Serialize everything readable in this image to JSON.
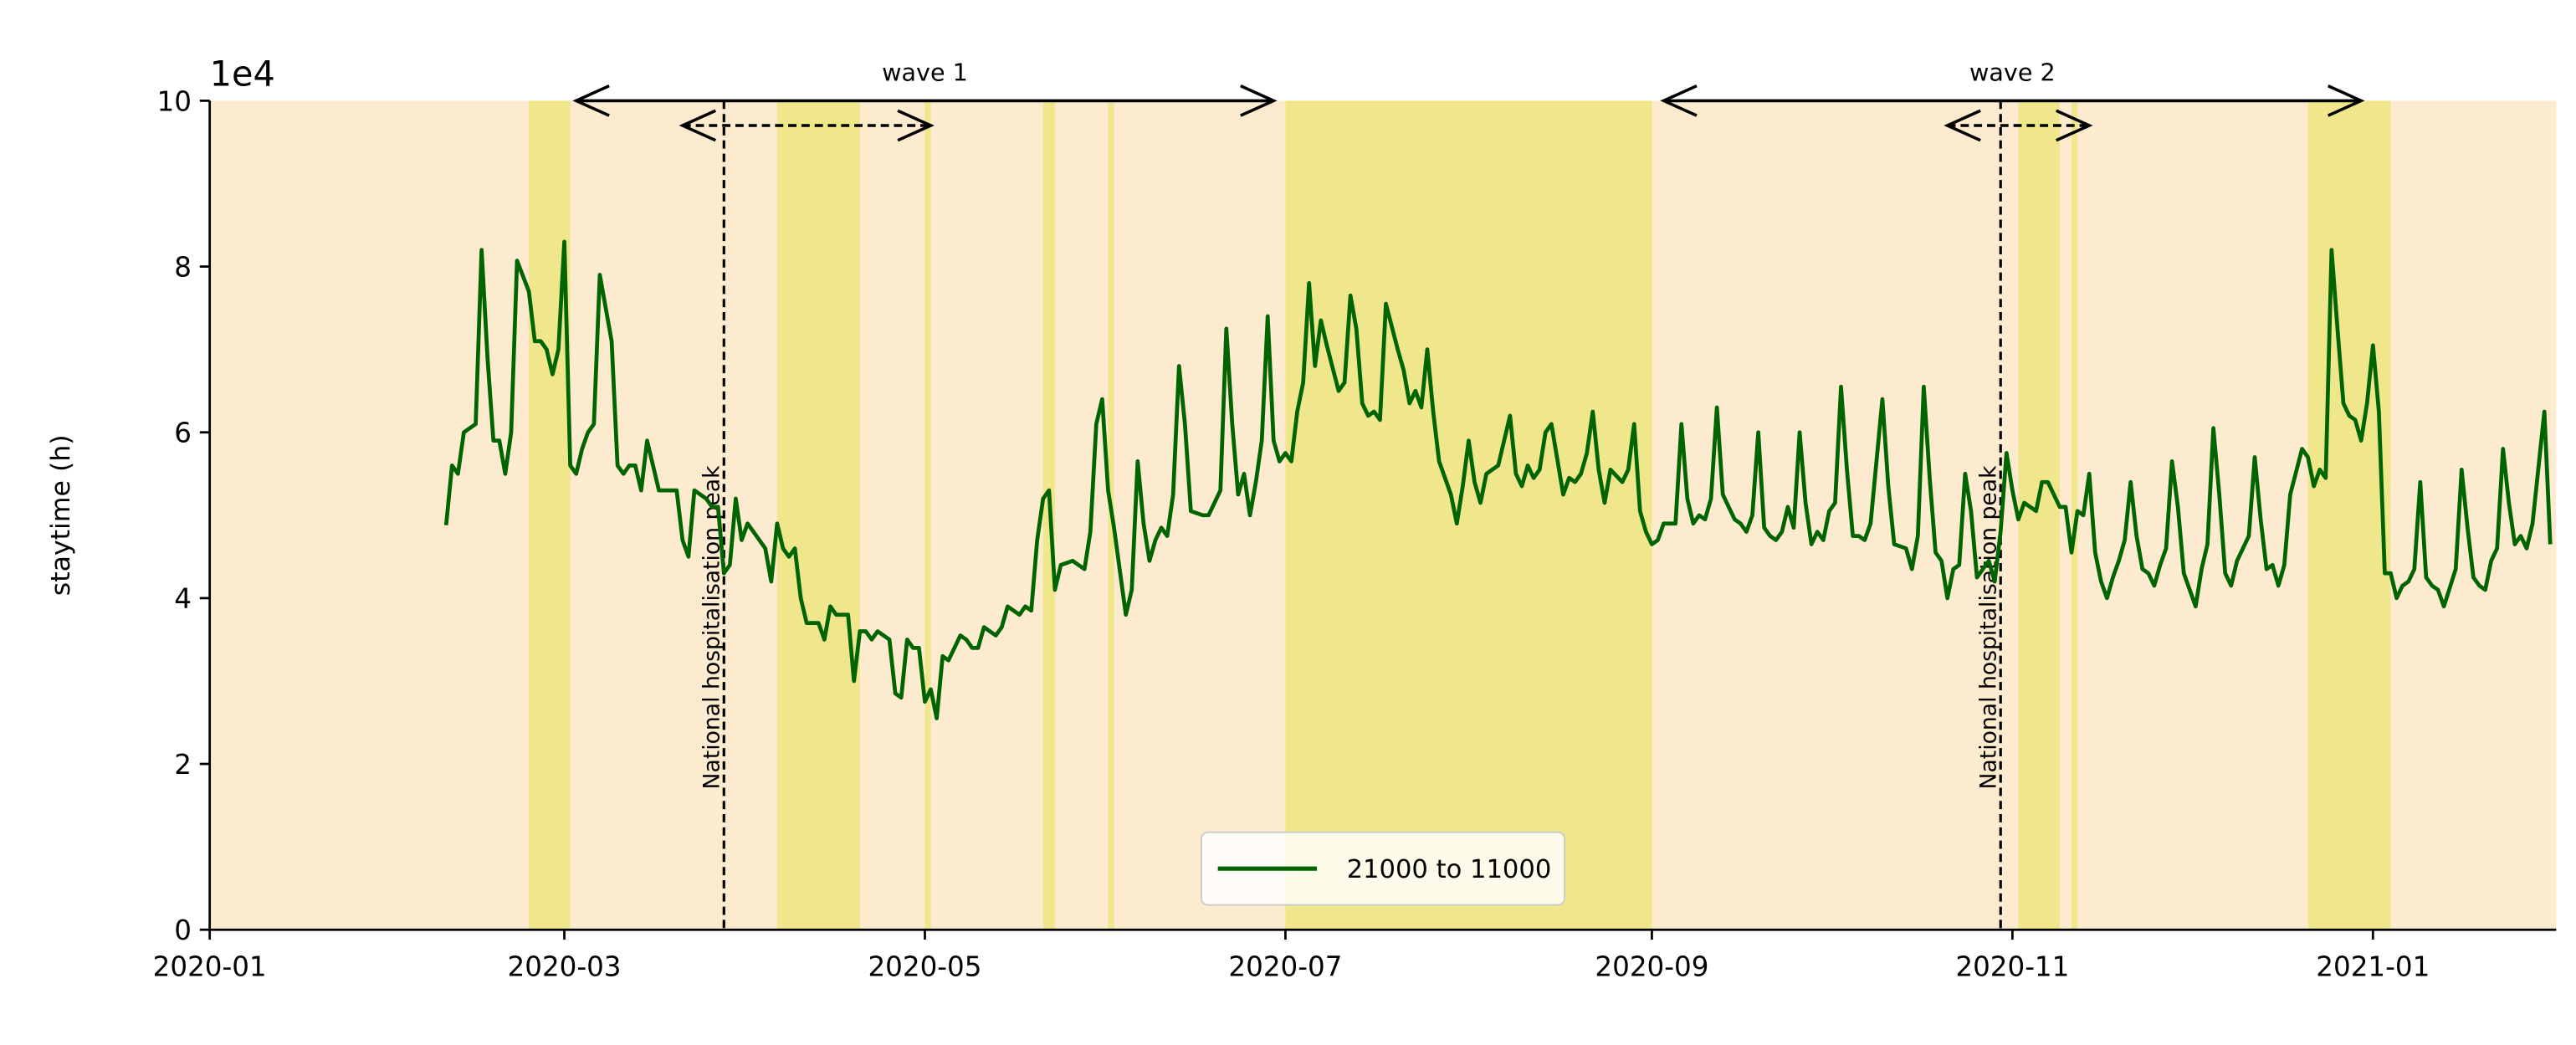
{
  "chart_data": {
    "type": "line",
    "y_offset_label": "1e4",
    "ylabel": "staytime (h)",
    "x": [
      "2020-02-10",
      "2020-02-11",
      "2020-02-12",
      "2020-02-13",
      "2020-02-15",
      "2020-02-16",
      "2020-02-17",
      "2020-02-18",
      "2020-02-19",
      "2020-02-20",
      "2020-02-21",
      "2020-02-22",
      "2020-02-24",
      "2020-02-25",
      "2020-02-26",
      "2020-02-27",
      "2020-02-28",
      "2020-02-29",
      "2020-03-01",
      "2020-03-02",
      "2020-03-03",
      "2020-03-04",
      "2020-03-05",
      "2020-03-06",
      "2020-03-07",
      "2020-03-09",
      "2020-03-10",
      "2020-03-11",
      "2020-03-12",
      "2020-03-13",
      "2020-03-14",
      "2020-03-15",
      "2020-03-16",
      "2020-03-17",
      "2020-03-18",
      "2020-03-19",
      "2020-03-20",
      "2020-03-21",
      "2020-03-22",
      "2020-03-23",
      "2020-03-25",
      "2020-03-26",
      "2020-03-27",
      "2020-03-28",
      "2020-03-29",
      "2020-03-30",
      "2020-03-31",
      "2020-04-01",
      "2020-04-02",
      "2020-04-04",
      "2020-04-05",
      "2020-04-06",
      "2020-04-07",
      "2020-04-08",
      "2020-04-09",
      "2020-04-10",
      "2020-04-11",
      "2020-04-13",
      "2020-04-14",
      "2020-04-15",
      "2020-04-16",
      "2020-04-17",
      "2020-04-18",
      "2020-04-19",
      "2020-04-20",
      "2020-04-21",
      "2020-04-22",
      "2020-04-23",
      "2020-04-25",
      "2020-04-26",
      "2020-04-27",
      "2020-04-28",
      "2020-04-29",
      "2020-04-30",
      "2020-05-01",
      "2020-05-02",
      "2020-05-03",
      "2020-05-04",
      "2020-05-05",
      "2020-05-07",
      "2020-05-08",
      "2020-05-09",
      "2020-05-10",
      "2020-05-11",
      "2020-05-12",
      "2020-05-13",
      "2020-05-14",
      "2020-05-15",
      "2020-05-17",
      "2020-05-18",
      "2020-05-19",
      "2020-05-20",
      "2020-05-21",
      "2020-05-22",
      "2020-05-23",
      "2020-05-24",
      "2020-05-26",
      "2020-05-27",
      "2020-05-28",
      "2020-05-29",
      "2020-05-30",
      "2020-05-31",
      "2020-06-01",
      "2020-06-02",
      "2020-06-04",
      "2020-06-05",
      "2020-06-06",
      "2020-06-07",
      "2020-06-08",
      "2020-06-09",
      "2020-06-10",
      "2020-06-11",
      "2020-06-12",
      "2020-06-13",
      "2020-06-14",
      "2020-06-15",
      "2020-06-17",
      "2020-06-18",
      "2020-06-19",
      "2020-06-20",
      "2020-06-21",
      "2020-06-22",
      "2020-06-23",
      "2020-06-24",
      "2020-06-25",
      "2020-06-26",
      "2020-06-27",
      "2020-06-28",
      "2020-06-29",
      "2020-06-30",
      "2020-07-01",
      "2020-07-02",
      "2020-07-03",
      "2020-07-04",
      "2020-07-05",
      "2020-07-06",
      "2020-07-07",
      "2020-07-08",
      "2020-07-10",
      "2020-07-11",
      "2020-07-12",
      "2020-07-13",
      "2020-07-14",
      "2020-07-15",
      "2020-07-16",
      "2020-07-17",
      "2020-07-18",
      "2020-07-20",
      "2020-07-21",
      "2020-07-22",
      "2020-07-23",
      "2020-07-24",
      "2020-07-25",
      "2020-07-26",
      "2020-07-27",
      "2020-07-29",
      "2020-07-30",
      "2020-07-31",
      "2020-08-01",
      "2020-08-02",
      "2020-08-03",
      "2020-08-04",
      "2020-08-05",
      "2020-08-06",
      "2020-08-08",
      "2020-08-09",
      "2020-08-10",
      "2020-08-11",
      "2020-08-12",
      "2020-08-13",
      "2020-08-14",
      "2020-08-15",
      "2020-08-17",
      "2020-08-18",
      "2020-08-19",
      "2020-08-20",
      "2020-08-21",
      "2020-08-22",
      "2020-08-23",
      "2020-08-24",
      "2020-08-25",
      "2020-08-27",
      "2020-08-28",
      "2020-08-29",
      "2020-08-30",
      "2020-08-31",
      "2020-09-01",
      "2020-09-02",
      "2020-09-03",
      "2020-09-05",
      "2020-09-06",
      "2020-09-07",
      "2020-09-08",
      "2020-09-09",
      "2020-09-10",
      "2020-09-11",
      "2020-09-12",
      "2020-09-13",
      "2020-09-15",
      "2020-09-16",
      "2020-09-17",
      "2020-09-18",
      "2020-09-19",
      "2020-09-20",
      "2020-09-21",
      "2020-09-22",
      "2020-09-23",
      "2020-09-24",
      "2020-09-25",
      "2020-09-26",
      "2020-09-27",
      "2020-09-28",
      "2020-09-29",
      "2020-09-30",
      "2020-10-01",
      "2020-10-02",
      "2020-10-03",
      "2020-10-04",
      "2020-10-05",
      "2020-10-06",
      "2020-10-07",
      "2020-10-08",
      "2020-10-10",
      "2020-10-11",
      "2020-10-12",
      "2020-10-14",
      "2020-10-15",
      "2020-10-16",
      "2020-10-17",
      "2020-10-18",
      "2020-10-19",
      "2020-10-20",
      "2020-10-21",
      "2020-10-22",
      "2020-10-23",
      "2020-10-24",
      "2020-10-25",
      "2020-10-26",
      "2020-10-28",
      "2020-10-29",
      "2020-10-30",
      "2020-10-31",
      "2020-11-01",
      "2020-11-02",
      "2020-11-03",
      "2020-11-05",
      "2020-11-06",
      "2020-11-07",
      "2020-11-08",
      "2020-11-09",
      "2020-11-10",
      "2020-11-11",
      "2020-11-12",
      "2020-11-13",
      "2020-11-14",
      "2020-11-15",
      "2020-11-16",
      "2020-11-17",
      "2020-11-18",
      "2020-11-19",
      "2020-11-20",
      "2020-11-21",
      "2020-11-22",
      "2020-11-23",
      "2020-11-24",
      "2020-11-25",
      "2020-11-26",
      "2020-11-27",
      "2020-11-28",
      "2020-11-29",
      "2020-11-30",
      "2020-12-02",
      "2020-12-03",
      "2020-12-04",
      "2020-12-05",
      "2020-12-06",
      "2020-12-07",
      "2020-12-08",
      "2020-12-09",
      "2020-12-11",
      "2020-12-12",
      "2020-12-13",
      "2020-12-14",
      "2020-12-15",
      "2020-12-16",
      "2020-12-17",
      "2020-12-18",
      "2020-12-20",
      "2020-12-21",
      "2020-12-22",
      "2020-12-23",
      "2020-12-24",
      "2020-12-25",
      "2020-12-26",
      "2020-12-27",
      "2020-12-28",
      "2020-12-29",
      "2020-12-30",
      "2020-12-31",
      "2021-01-01",
      "2021-01-02",
      "2021-01-03",
      "2021-01-04",
      "2021-01-05",
      "2021-01-06",
      "2021-01-07",
      "2021-01-08",
      "2021-01-09",
      "2021-01-10",
      "2021-01-11",
      "2021-01-12",
      "2021-01-13",
      "2021-01-15",
      "2021-01-16",
      "2021-01-17",
      "2021-01-18",
      "2021-01-19",
      "2021-01-20",
      "2021-01-21",
      "2021-01-22",
      "2021-01-23",
      "2021-01-24",
      "2021-01-25",
      "2021-01-26",
      "2021-01-27",
      "2021-01-28",
      "2021-01-30",
      "2021-01-31"
    ],
    "series": [
      {
        "name": "21000 to 11000",
        "color": "#006400",
        "values": [
          4.88,
          5.6,
          5.5,
          6.0,
          6.1,
          8.2,
          6.9,
          5.9,
          5.9,
          5.5,
          6.0,
          8.07,
          7.7,
          7.1,
          7.1,
          7.0,
          6.7,
          7.0,
          8.3,
          5.6,
          5.5,
          5.8,
          6.0,
          6.1,
          7.9,
          7.1,
          5.6,
          5.5,
          5.6,
          5.6,
          5.3,
          5.9,
          5.6,
          5.3,
          5.3,
          5.3,
          5.3,
          4.7,
          4.5,
          5.3,
          5.2,
          5.1,
          5.1,
          4.3,
          4.4,
          5.2,
          4.7,
          4.9,
          4.8,
          4.6,
          4.2,
          4.9,
          4.6,
          4.5,
          4.6,
          4.0,
          3.7,
          3.7,
          3.5,
          3.9,
          3.8,
          3.8,
          3.8,
          3.0,
          3.6,
          3.6,
          3.5,
          3.6,
          3.5,
          2.85,
          2.8,
          3.5,
          3.4,
          3.4,
          2.75,
          2.9,
          2.55,
          3.3,
          3.25,
          3.55,
          3.5,
          3.4,
          3.4,
          3.65,
          3.6,
          3.55,
          3.65,
          3.9,
          3.8,
          3.9,
          3.85,
          4.7,
          5.2,
          5.3,
          4.1,
          4.4,
          4.45,
          4.4,
          4.35,
          4.8,
          6.1,
          6.4,
          5.3,
          4.85,
          3.8,
          4.1,
          5.65,
          4.9,
          4.45,
          4.7,
          4.85,
          4.75,
          5.25,
          6.8,
          6.1,
          5.05,
          5.0,
          5.0,
          5.15,
          5.3,
          7.25,
          6.1,
          5.25,
          5.5,
          5.0,
          5.4,
          5.9,
          7.4,
          5.9,
          5.65,
          5.75,
          5.65,
          6.25,
          6.6,
          7.8,
          6.8,
          7.35,
          7.05,
          6.5,
          6.6,
          7.65,
          7.25,
          6.35,
          6.2,
          6.25,
          6.15,
          7.55,
          7.0,
          6.75,
          6.35,
          6.5,
          6.3,
          7.0,
          6.25,
          5.65,
          5.25,
          4.9,
          5.35,
          5.9,
          5.4,
          5.15,
          5.5,
          5.55,
          5.6,
          6.2,
          5.5,
          5.35,
          5.6,
          5.45,
          5.55,
          6.0,
          6.1,
          5.25,
          5.45,
          5.4,
          5.5,
          5.75,
          6.25,
          5.55,
          5.15,
          5.55,
          5.4,
          5.55,
          6.1,
          5.05,
          4.8,
          4.65,
          4.7,
          4.9,
          4.9,
          6.1,
          5.2,
          4.9,
          5.0,
          4.95,
          5.2,
          6.3,
          5.25,
          4.95,
          4.9,
          4.8,
          5.0,
          6.0,
          4.85,
          4.75,
          4.7,
          4.8,
          5.1,
          4.85,
          6.0,
          5.15,
          4.65,
          4.8,
          4.7,
          5.05,
          5.15,
          6.55,
          5.55,
          4.75,
          4.75,
          4.7,
          4.9,
          6.4,
          5.35,
          4.65,
          4.6,
          4.35,
          4.75,
          6.55,
          5.45,
          4.55,
          4.45,
          4.0,
          4.35,
          4.4,
          5.5,
          5.05,
          4.25,
          4.45,
          4.2,
          4.8,
          5.75,
          5.3,
          4.95,
          5.15,
          5.05,
          5.4,
          5.4,
          5.25,
          5.1,
          5.1,
          4.55,
          5.05,
          5.0,
          5.5,
          4.55,
          4.2,
          4.0,
          4.25,
          4.45,
          4.7,
          5.4,
          4.75,
          4.35,
          4.3,
          4.15,
          4.4,
          4.6,
          5.65,
          5.1,
          4.3,
          3.9,
          4.35,
          4.65,
          6.05,
          5.25,
          4.3,
          4.15,
          4.45,
          4.75,
          5.7,
          4.95,
          4.35,
          4.4,
          4.15,
          4.4,
          5.25,
          5.8,
          5.7,
          5.35,
          5.55,
          5.45,
          8.2,
          7.25,
          6.35,
          6.2,
          6.15,
          5.9,
          6.35,
          7.05,
          6.25,
          4.3,
          4.3,
          4.0,
          4.15,
          4.2,
          4.35,
          5.4,
          4.25,
          4.15,
          4.1,
          3.9,
          4.35,
          5.55,
          4.85,
          4.25,
          4.15,
          4.1,
          4.45,
          4.6,
          5.8,
          5.15,
          4.65,
          4.75,
          4.6,
          4.9,
          6.25,
          4.65
        ]
      }
    ],
    "xlim": [
      "2020-01-01",
      "2021-02-01"
    ],
    "xticks": [
      {
        "value": "2020-01-01",
        "label": "2020-01"
      },
      {
        "value": "2020-03-01",
        "label": "2020-03"
      },
      {
        "value": "2020-05-01",
        "label": "2020-05"
      },
      {
        "value": "2020-07-01",
        "label": "2020-07"
      },
      {
        "value": "2020-09-01",
        "label": "2020-09"
      },
      {
        "value": "2020-11-01",
        "label": "2020-11"
      },
      {
        "value": "2021-01-01",
        "label": "2021-01"
      }
    ],
    "ylim": [
      0,
      10
    ],
    "yticks": [
      0,
      2,
      4,
      6,
      8,
      10
    ],
    "background_color": "#fdebd0",
    "shaded_spans": {
      "color": "#f0e68c",
      "ranges": [
        [
          "2020-02-24",
          "2020-03-02"
        ],
        [
          "2020-04-06",
          "2020-04-20"
        ],
        [
          "2020-05-01",
          "2020-05-02"
        ],
        [
          "2020-05-21",
          "2020-05-23"
        ],
        [
          "2020-06-01",
          "2020-06-02"
        ],
        [
          "2020-07-01",
          "2020-09-01"
        ],
        [
          "2020-11-02",
          "2020-11-09"
        ],
        [
          "2020-11-11",
          "2020-11-12"
        ],
        [
          "2020-12-21",
          "2021-01-04"
        ]
      ]
    },
    "vlines": [
      {
        "x": "2020-03-28",
        "label": "National hospitalisation peak"
      },
      {
        "x": "2020-10-30",
        "label": "National hospitalisation peak"
      }
    ],
    "waves": [
      {
        "label": "wave 1",
        "range": [
          "2020-03-03",
          "2020-06-29"
        ],
        "inner_range": [
          "2020-03-21",
          "2020-05-02"
        ]
      },
      {
        "label": "wave 2",
        "range": [
          "2020-09-03",
          "2020-12-30"
        ],
        "inner_range": [
          "2020-10-21",
          "2020-11-14"
        ]
      }
    ],
    "legend": "lower center"
  }
}
